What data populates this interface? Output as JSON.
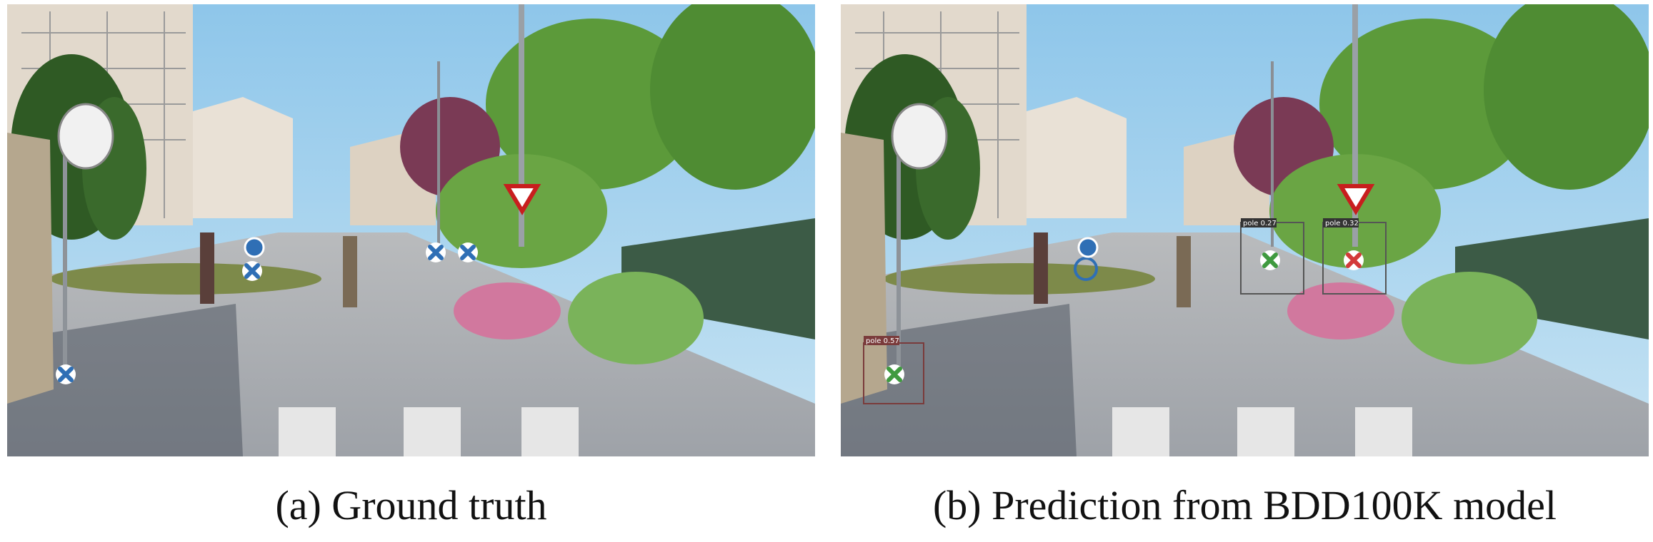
{
  "captions": {
    "a": "(a) Ground truth",
    "b": "(b) Prediction from BDD100K model"
  },
  "panel_b_labels": {
    "box1": "pole 0.57",
    "box2": "pole 0.27",
    "box3": "pole 0.32"
  },
  "colors": {
    "gt_marker": "#2f6fb5",
    "true_positive": "#3f9a3f",
    "false_positive": "#d33a3a",
    "missed": "#2f6fb5"
  },
  "icon_names": [
    "cross-marker-icon",
    "circle-marker-icon"
  ]
}
